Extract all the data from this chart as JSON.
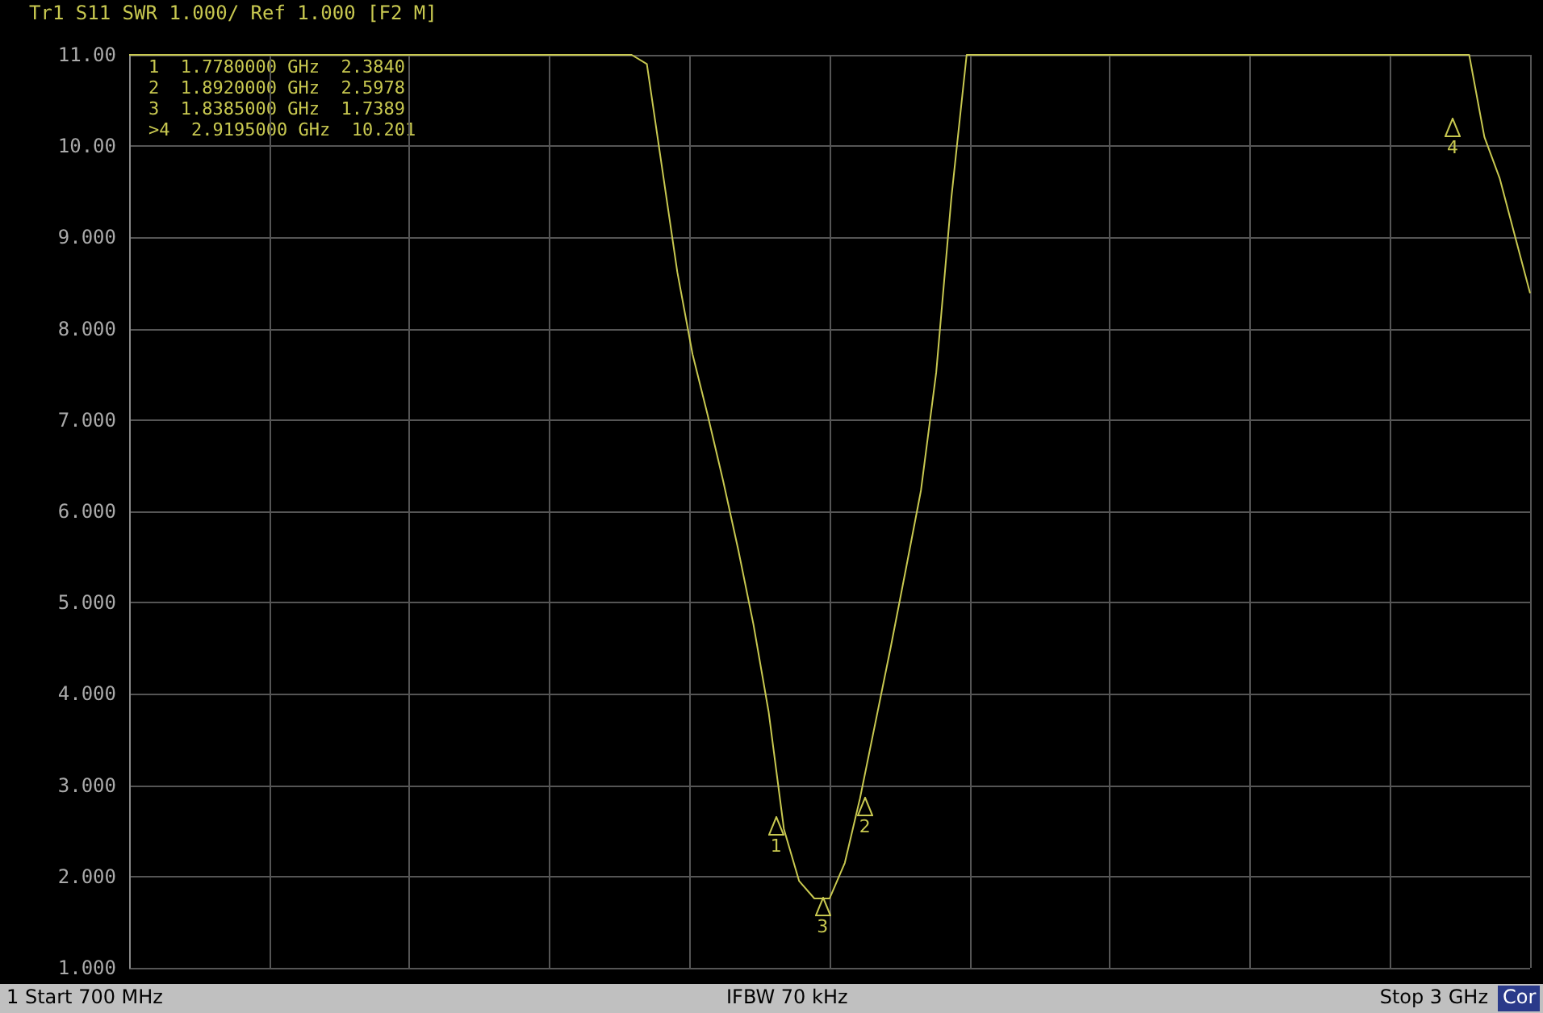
{
  "chart_data": {
    "type": "line",
    "categories": [
      null,
      null,
      null,
      null,
      null,
      null,
      null,
      null,
      null,
      null,
      null,
      null,
      null,
      null,
      null,
      null,
      null,
      null,
      null,
      null,
      null,
      null,
      null,
      null,
      null,
      null,
      null,
      null,
      null,
      null,
      null,
      null,
      null,
      null,
      null,
      null,
      null,
      null,
      null,
      null,
      null,
      null,
      null,
      null,
      null,
      null,
      null,
      null,
      null,
      null,
      null,
      null,
      null,
      null,
      null,
      null,
      null,
      null,
      null,
      null,
      null,
      null,
      null,
      null,
      null,
      null,
      null,
      null,
      null,
      null,
      null,
      null,
      null,
      null,
      null,
      null,
      null,
      null,
      null,
      null,
      null,
      null,
      null,
      null,
      null,
      null,
      null,
      null,
      null,
      null,
      null,
      null,
      null
    ],
    "ylim": [
      1,
      11
    ],
    "yticks": [
      {
        "value": 1,
        "label": "1.000"
      },
      {
        "value": 2,
        "label": "2.000"
      },
      {
        "value": 3,
        "label": "3.000"
      },
      {
        "value": 4,
        "label": "4.000"
      },
      {
        "value": 5,
        "label": "5.000"
      },
      {
        "value": 6,
        "label": "6.000"
      },
      {
        "value": 7,
        "label": "7.000"
      },
      {
        "value": 8,
        "label": "8.000"
      },
      {
        "value": 9,
        "label": "9.000"
      },
      {
        "value": 10,
        "label": "10.00"
      },
      {
        "value": 11,
        "label": "11.00"
      }
    ],
    "grid": true,
    "tick_labels": "y",
    "marker": "none",
    "line_style": "solid",
    "series": [
      {
        "color": "#c8c850",
        "values": [
          11,
          11,
          11,
          11,
          11,
          11,
          11,
          11,
          11,
          11,
          11,
          11,
          11,
          11,
          11,
          11,
          11,
          11,
          11,
          11,
          11,
          11,
          11,
          11,
          11,
          11,
          11,
          11,
          11,
          11,
          11,
          11,
          11,
          11,
          10.9,
          9.76,
          8.62,
          7.72,
          7.05,
          6.34,
          5.58,
          4.76,
          3.8,
          2.52,
          1.95,
          1.76,
          1.76,
          2.15,
          2.86,
          3.68,
          4.5,
          5.36,
          6.23,
          7.52,
          9.44,
          11,
          11,
          11,
          11,
          11,
          11,
          11,
          11,
          11,
          11,
          11,
          11,
          11,
          11,
          11,
          11,
          11,
          11,
          11,
          11,
          11,
          11,
          11,
          11,
          11,
          11,
          11,
          11,
          11,
          11,
          11,
          11,
          11,
          11,
          10.1,
          9.65,
          9.02,
          8.39
        ]
      }
    ],
    "annotations": [
      "Tr1 S11 SWR 1.000/ Ref 1.000 [F2 M]",
      "1  1.7780000 GHz  2.3840",
      "2  1.8920000 GHz  2.5978",
      "3  1.8385000 GHz  1.7389",
      ">4  2.9195000 GHz  10.201",
      "1 Start 700 MHz",
      "IFBW 70 kHz",
      "Stop 3 GHz",
      "Cor",
      "1",
      "2",
      "3",
      "4"
    ]
  }
}
